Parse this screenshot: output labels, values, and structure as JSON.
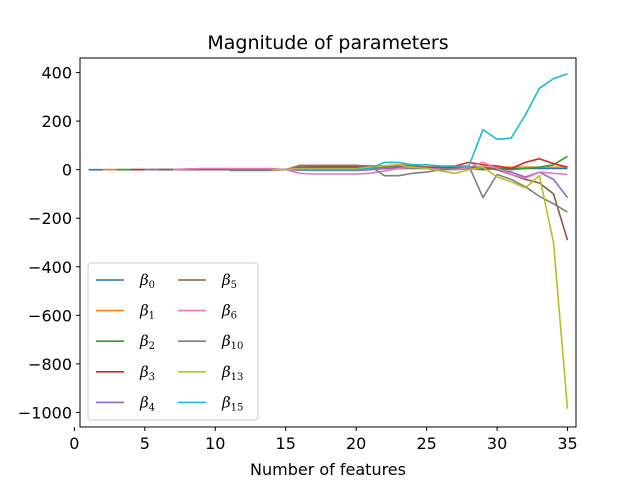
{
  "chart_data": {
    "type": "line",
    "title": "Magnitude of parameters",
    "xlabel": "Number of features",
    "ylabel": "",
    "xlim": [
      0.4,
      35.6
    ],
    "ylim": [
      -1060,
      460
    ],
    "xticks": [
      0,
      5,
      10,
      15,
      20,
      25,
      30,
      35
    ],
    "yticks": [
      400,
      200,
      0,
      -200,
      -400,
      -600,
      -800,
      -1000
    ],
    "legend": {
      "placement": "lower-left",
      "columns": 2
    },
    "grid": false,
    "series": [
      {
        "name": "β0",
        "symbol": "β",
        "sub": "0",
        "color": "#1f77b4",
        "x": [
          1,
          2,
          3,
          4,
          5,
          6,
          7,
          8,
          9,
          10,
          11,
          12,
          13,
          14,
          15,
          16,
          17,
          18,
          19,
          20,
          21,
          22,
          23,
          24,
          25,
          26,
          27,
          28,
          29,
          30,
          31,
          32,
          33,
          34,
          35
        ],
        "y": [
          0,
          0,
          0,
          0,
          0,
          0,
          0,
          0,
          0,
          0,
          0,
          0,
          0,
          0,
          0,
          2,
          3,
          3,
          3,
          3,
          4,
          5,
          5,
          5,
          5,
          5,
          5,
          6,
          6,
          5,
          5,
          5,
          5,
          5,
          5
        ]
      },
      {
        "name": "β1",
        "symbol": "β",
        "sub": "1",
        "color": "#ff7f0e",
        "x": [
          2,
          3,
          4,
          5,
          6,
          7,
          8,
          9,
          10,
          11,
          12,
          13,
          14,
          15,
          16,
          17,
          18,
          19,
          20,
          21,
          22,
          23,
          24,
          25,
          26,
          27,
          28,
          29,
          30,
          31,
          32,
          33,
          34,
          35
        ],
        "y": [
          0,
          0,
          0,
          0,
          0,
          0,
          0,
          0,
          0,
          0,
          0,
          0,
          0,
          0,
          3,
          4,
          4,
          4,
          4,
          5,
          6,
          7,
          8,
          8,
          8,
          9,
          10,
          10,
          10,
          10,
          10,
          10,
          10,
          10
        ]
      },
      {
        "name": "β2",
        "symbol": "β",
        "sub": "2",
        "color": "#2ca02c",
        "x": [
          3,
          4,
          5,
          6,
          7,
          8,
          9,
          10,
          11,
          12,
          13,
          14,
          15,
          16,
          17,
          18,
          19,
          20,
          21,
          22,
          23,
          24,
          25,
          26,
          27,
          28,
          29,
          30,
          31,
          32,
          33,
          34,
          35
        ],
        "y": [
          0,
          0,
          0,
          0,
          0,
          0,
          0,
          0,
          0,
          0,
          0,
          0,
          0,
          5,
          6,
          6,
          6,
          6,
          8,
          10,
          12,
          12,
          10,
          8,
          8,
          5,
          0,
          5,
          0,
          5,
          10,
          20,
          55
        ]
      },
      {
        "name": "β3",
        "symbol": "β",
        "sub": "3",
        "color": "#d62728",
        "x": [
          4,
          5,
          6,
          7,
          8,
          9,
          10,
          11,
          12,
          13,
          14,
          15,
          16,
          17,
          18,
          19,
          20,
          21,
          22,
          23,
          24,
          25,
          26,
          27,
          28,
          29,
          30,
          31,
          32,
          33,
          34,
          35
        ],
        "y": [
          0,
          0,
          0,
          0,
          0,
          0,
          0,
          0,
          0,
          0,
          0,
          0,
          8,
          10,
          10,
          10,
          10,
          12,
          15,
          20,
          15,
          10,
          10,
          15,
          30,
          20,
          15,
          5,
          30,
          45,
          25,
          10
        ]
      },
      {
        "name": "β4",
        "symbol": "β",
        "sub": "4",
        "color": "#9467bd",
        "x": [
          5,
          6,
          7,
          8,
          9,
          10,
          11,
          12,
          13,
          14,
          15,
          16,
          17,
          18,
          19,
          20,
          21,
          22,
          23,
          24,
          25,
          26,
          27,
          28,
          29,
          30,
          31,
          32,
          33,
          34,
          35
        ],
        "y": [
          0,
          0,
          0,
          0,
          0,
          0,
          0,
          0,
          0,
          0,
          0,
          -2,
          -3,
          -3,
          -3,
          -3,
          0,
          5,
          10,
          10,
          8,
          5,
          0,
          5,
          10,
          0,
          -10,
          -30,
          -10,
          -40,
          -115
        ]
      },
      {
        "name": "β5",
        "symbol": "β",
        "sub": "5",
        "color": "#8c564b",
        "x": [
          6,
          7,
          8,
          9,
          10,
          11,
          12,
          13,
          14,
          15,
          16,
          17,
          18,
          19,
          20,
          21,
          22,
          23,
          24,
          25,
          26,
          27,
          28,
          29,
          30,
          31,
          32,
          33,
          34,
          35
        ],
        "y": [
          0,
          0,
          0,
          0,
          0,
          0,
          0,
          0,
          0,
          0,
          15,
          15,
          15,
          15,
          15,
          15,
          15,
          15,
          15,
          10,
          10,
          10,
          10,
          10,
          0,
          -20,
          -40,
          -55,
          -100,
          -290
        ]
      },
      {
        "name": "β6",
        "symbol": "β",
        "sub": "6",
        "color": "#e377c2",
        "x": [
          7,
          8,
          9,
          10,
          11,
          12,
          13,
          14,
          15,
          16,
          17,
          18,
          19,
          20,
          21,
          22,
          23,
          24,
          25,
          26,
          27,
          28,
          29,
          30,
          31,
          32,
          33,
          34,
          35
        ],
        "y": [
          0,
          3,
          5,
          5,
          5,
          5,
          5,
          5,
          0,
          -15,
          -18,
          -18,
          -18,
          -18,
          -15,
          -5,
          5,
          10,
          5,
          0,
          0,
          10,
          30,
          5,
          -20,
          -35,
          -10,
          -15,
          -20
        ]
      },
      {
        "name": "β10",
        "symbol": "β",
        "sub": "10",
        "color": "#7f7f7f",
        "x": [
          11,
          12,
          13,
          14,
          15,
          16,
          17,
          18,
          19,
          20,
          21,
          22,
          23,
          24,
          25,
          26,
          27,
          28,
          29,
          30,
          31,
          32,
          33,
          34,
          35
        ],
        "y": [
          -3,
          -3,
          -3,
          -3,
          0,
          18,
          18,
          18,
          18,
          18,
          15,
          -25,
          -25,
          -15,
          -10,
          0,
          5,
          15,
          -115,
          -20,
          -40,
          -70,
          -110,
          -140,
          -175
        ]
      },
      {
        "name": "β13",
        "symbol": "β",
        "sub": "13",
        "color": "#bcbd22",
        "x": [
          14,
          15,
          16,
          17,
          18,
          19,
          20,
          21,
          22,
          23,
          24,
          25,
          26,
          27,
          28,
          29,
          30,
          31,
          32,
          33,
          34,
          35
        ],
        "y": [
          0,
          0,
          5,
          5,
          5,
          5,
          5,
          10,
          15,
          20,
          10,
          5,
          -5,
          -15,
          0,
          10,
          -30,
          -50,
          -75,
          -25,
          -300,
          -985
        ]
      },
      {
        "name": "β15",
        "symbol": "β",
        "sub": "15",
        "color": "#17becf",
        "x": [
          16,
          17,
          18,
          19,
          20,
          21,
          22,
          23,
          24,
          25,
          26,
          27,
          28,
          29,
          30,
          31,
          32,
          33,
          34,
          35
        ],
        "y": [
          0,
          0,
          0,
          0,
          0,
          5,
          30,
          30,
          20,
          20,
          15,
          15,
          15,
          165,
          125,
          130,
          225,
          335,
          375,
          395
        ]
      }
    ]
  }
}
